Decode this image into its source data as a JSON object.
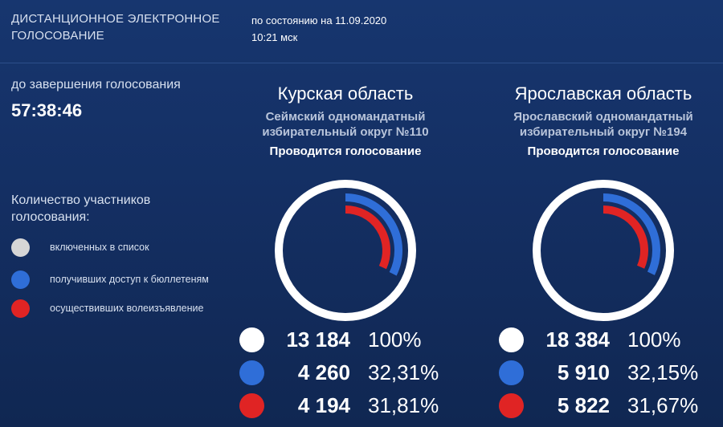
{
  "header": {
    "title_line1": "ДИСТАНЦИОННОЕ ЭЛЕКТРОННОЕ",
    "title_line2": "ГОЛОСОВАНИЕ",
    "status_line1": "по состоянию на 11.09.2020",
    "status_line2": "10:21 мск"
  },
  "countdown": {
    "label": "до завершения голосования",
    "value": "57:38:46"
  },
  "legend": {
    "title_line1": "Количество участников",
    "title_line2": "голосования:",
    "items": [
      {
        "label": "включенных в список",
        "color": "#d6d6d6"
      },
      {
        "label": "получивших доступ к бюллетеням",
        "color": "#2f6ed8"
      },
      {
        "label": "осуществивших волеизъявление",
        "color": "#e02424"
      }
    ]
  },
  "colors": {
    "white": "#ffffff",
    "blue": "#2f6ed8",
    "red": "#e02424"
  },
  "regions": [
    {
      "name": "Курская область",
      "district_line1": "Сеймский одномандатный",
      "district_line2": "избирательный округ №110",
      "status": "Проводится голосование",
      "stats": [
        {
          "count": "13 184",
          "percent": "100%",
          "fraction": 1.0
        },
        {
          "count": "4 260",
          "percent": "32,31%",
          "fraction": 0.3231
        },
        {
          "count": "4 194",
          "percent": "31,81%",
          "fraction": 0.3181
        }
      ]
    },
    {
      "name": "Ярославская область",
      "district_line1": "Ярославский одномандатный",
      "district_line2": "избирательный округ №194",
      "status": "Проводится голосование",
      "stats": [
        {
          "count": "18 384",
          "percent": "100%",
          "fraction": 1.0
        },
        {
          "count": "5 910",
          "percent": "32,15%",
          "fraction": 0.3215
        },
        {
          "count": "5 822",
          "percent": "31,67%",
          "fraction": 0.3167
        }
      ]
    }
  ]
}
